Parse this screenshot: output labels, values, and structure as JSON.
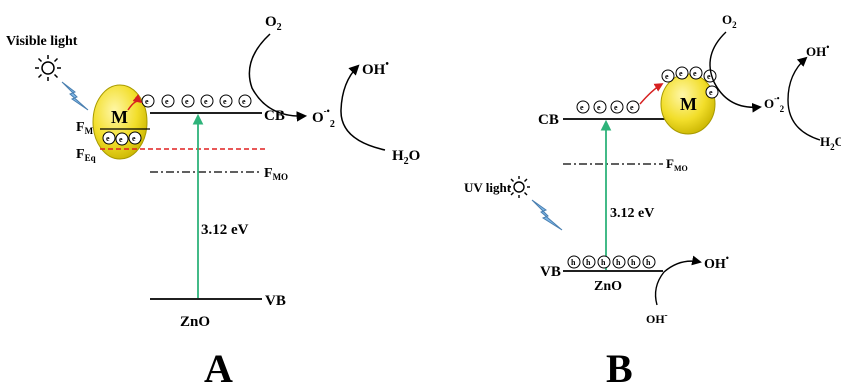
{
  "panel_a": {
    "visible_light": "Visible light",
    "metal": "M",
    "f_m": "F",
    "f_m_sub": "M",
    "f_eq": "F",
    "f_eq_sub": "Eq",
    "f_mo": "F",
    "f_mo_sub": "MO",
    "cb": "CB",
    "vb": "VB",
    "bandgap": "3.12 eV",
    "semiconductor": "ZnO",
    "o2": "O",
    "o2_sub": "2",
    "superoxide": "O",
    "superoxide_sup": "-•",
    "superoxide_sub": "2",
    "hydroxyl": "OH",
    "hydroxyl_sup": "•",
    "water": "H",
    "water_sub": "2",
    "water_end": "O",
    "electron": "e",
    "label": "A"
  },
  "panel_b": {
    "uv_light": "UV light",
    "metal": "M",
    "f_mo": "F",
    "f_mo_sub": "MO",
    "cb": "CB",
    "vb": "VB",
    "bandgap": "3.12 eV",
    "semiconductor": "ZnO",
    "o2": "O",
    "o2_sub": "2",
    "superoxide": "O",
    "superoxide_sup": "-•",
    "superoxide_sub": "2",
    "hydroxyl_top": "OH",
    "hydroxyl_top_sup": "•",
    "water": "H",
    "water_sub": "2",
    "water_end": "O",
    "hydroxyl_vb": "OH",
    "hydroxyl_vb_sup": "•",
    "hydroxide": "OH",
    "hydroxide_sup": "-",
    "electron": "e",
    "hole": "h",
    "label": "B"
  },
  "colors": {
    "metal_fill": "#f2de2a",
    "transition_arrow": "#2eb37a",
    "electron_arrow": "#d62020",
    "fermi_eq_line": "#e02020",
    "lightning": "#7fb8e8"
  }
}
